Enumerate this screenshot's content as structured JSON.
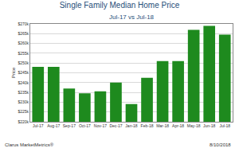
{
  "chart_data": {
    "type": "bar",
    "title": "Single Family Median Home Price",
    "subtitle": "Jul-17 vs Jul-18",
    "y_label": "Price",
    "categories": [
      "Jul-17",
      "Aug-17",
      "Sep-17",
      "Oct-17",
      "Nov-17",
      "Dec-17",
      "Jan-18",
      "Feb-18",
      "Mar-18",
      "Apr-18",
      "May-18",
      "Jun-18",
      "Jul-18"
    ],
    "values": [
      248000,
      248000,
      237000,
      234500,
      235500,
      240000,
      229000,
      242500,
      251000,
      251000,
      267000,
      269000,
      264500
    ],
    "color": "#1e8a1e",
    "ylim": [
      220000,
      270000
    ],
    "yticks": [
      {
        "value": 220000,
        "label": "$220k"
      },
      {
        "value": 225000,
        "label": "$225k"
      },
      {
        "value": 230000,
        "label": "$230k"
      },
      {
        "value": 235000,
        "label": "$235k"
      },
      {
        "value": 240000,
        "label": "$240k"
      },
      {
        "value": 245000,
        "label": "$245k"
      },
      {
        "value": 250000,
        "label": "$250k"
      },
      {
        "value": 255000,
        "label": "$255k"
      },
      {
        "value": 260000,
        "label": "$260k"
      },
      {
        "value": 265000,
        "label": "$265k"
      },
      {
        "value": 270000,
        "label": "$270k"
      }
    ],
    "grid": true,
    "annotations": [
      "Clarus MarketMetrics®",
      "8/10/2018"
    ]
  }
}
